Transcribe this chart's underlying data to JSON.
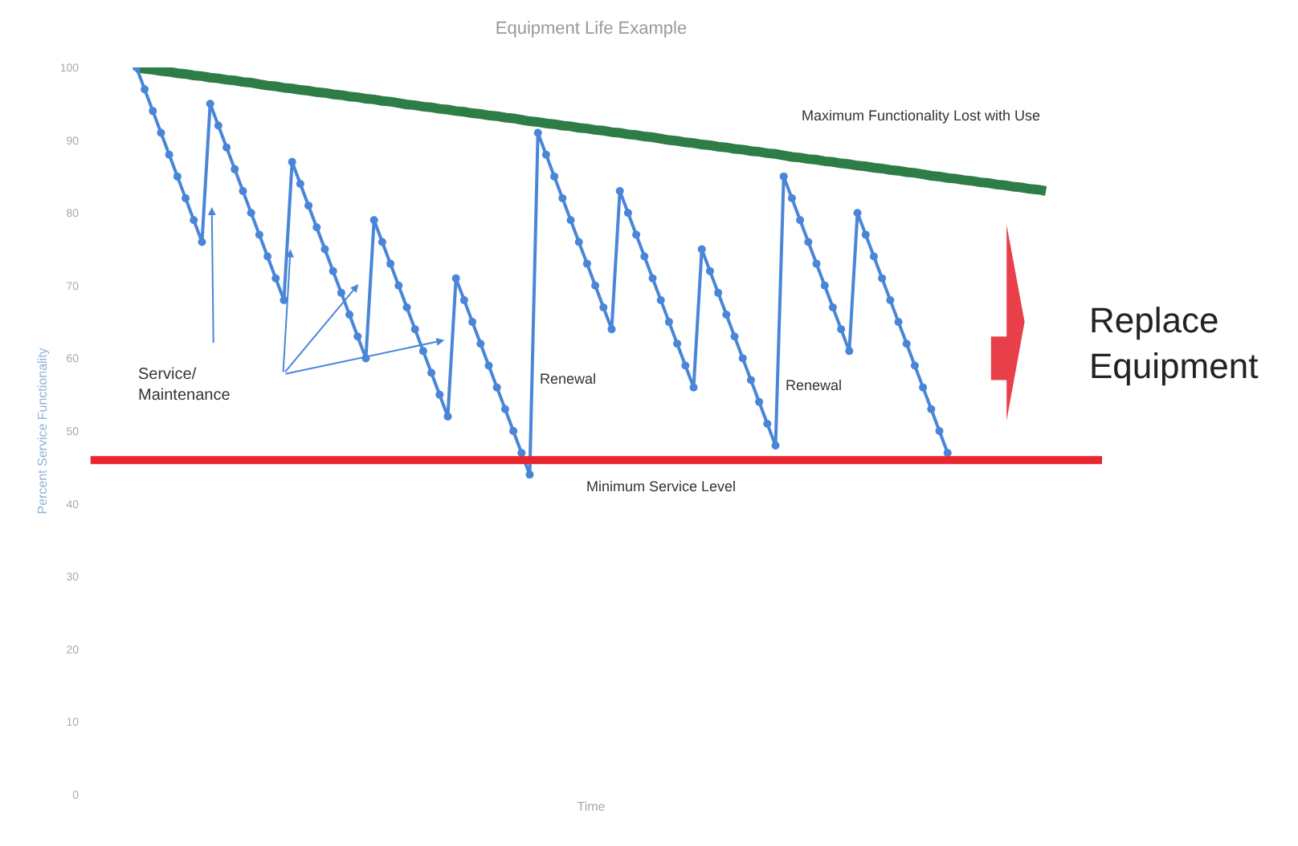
{
  "chart_data": {
    "type": "line",
    "title": "Equipment Life Example",
    "xlabel": "Time",
    "ylabel": "Percent Service Functionality",
    "categories": [
      null,
      null,
      null,
      null,
      null,
      null,
      null,
      null,
      null,
      null,
      null,
      null,
      null,
      null,
      null,
      null,
      null,
      null,
      null,
      null,
      null,
      null,
      null,
      null,
      null,
      null,
      null,
      null,
      null,
      null,
      null,
      null,
      null,
      null,
      null,
      null,
      null,
      null,
      null,
      null,
      null,
      null,
      null,
      null,
      null,
      null,
      null,
      null,
      null,
      null,
      null,
      null,
      null,
      null,
      null,
      null,
      null,
      null,
      null,
      null,
      null,
      null,
      null,
      null,
      null,
      null,
      null,
      null,
      null,
      null,
      null,
      null,
      null,
      null,
      null,
      null,
      null,
      null,
      null,
      null,
      null,
      null,
      null,
      null,
      null,
      null,
      null,
      null,
      null,
      null,
      null,
      null,
      null,
      null,
      null,
      null,
      null,
      null,
      null,
      null,
      null,
      null,
      null,
      null,
      null,
      null,
      null,
      null,
      null,
      null,
      null,
      null
    ],
    "series": [
      {
        "color": "#2e7d46",
        "marker": "none",
        "values": [
          100,
          99.8,
          99.7,
          99.5,
          99.4,
          99.2,
          99.1,
          98.9,
          98.8,
          98.6,
          98.5,
          98.3,
          98.2,
          98,
          97.9,
          97.7,
          97.5,
          97.4,
          97.2,
          97.1,
          96.9,
          96.8,
          96.6,
          96.5,
          96.3,
          96.2,
          96,
          95.9,
          95.7,
          95.6,
          95.4,
          95.3,
          95.1,
          94.9,
          94.8,
          94.6,
          94.5,
          94.3,
          94.2,
          94,
          93.9,
          93.7,
          93.6,
          93.4,
          93.3,
          93.1,
          93,
          92.8,
          92.6,
          92.5,
          92.3,
          92.2,
          92,
          91.9,
          91.7,
          91.6,
          91.4,
          91.3,
          91.1,
          91,
          90.8,
          90.7,
          90.5,
          90.4,
          90.2,
          90,
          89.9,
          89.7,
          89.6,
          89.4,
          89.3,
          89.1,
          89,
          88.8,
          88.7,
          88.5,
          88.4,
          88.2,
          88.1,
          87.9,
          87.7,
          87.6,
          87.4,
          87.3,
          87.1,
          87,
          86.8,
          86.7,
          86.5,
          86.4,
          86.2,
          86.1,
          85.9,
          85.8,
          85.6,
          85.5,
          85.3,
          85.1,
          85,
          84.8,
          84.7,
          84.5,
          84.4,
          84.2,
          84.1,
          83.9,
          83.8,
          83.6,
          83.5,
          83.3,
          83.2,
          83
        ]
      },
      {
        "color": "#4a86d8",
        "marker": "circle",
        "values": [
          100,
          97,
          94,
          91,
          88,
          85,
          82,
          79,
          76,
          95,
          92,
          89,
          86,
          83,
          80,
          77,
          74,
          71,
          68,
          87,
          84,
          81,
          78,
          75,
          72,
          69,
          66,
          63,
          60,
          79,
          76,
          73,
          70,
          67,
          64,
          61,
          58,
          55,
          52,
          71,
          68,
          65,
          62,
          59,
          56,
          53,
          50,
          47,
          44,
          91,
          88,
          85,
          82,
          79,
          76,
          73,
          70,
          67,
          64,
          83,
          80,
          77,
          74,
          71,
          68,
          65,
          62,
          59,
          56,
          75,
          72,
          69,
          66,
          63,
          60,
          57,
          54,
          51,
          48,
          85,
          82,
          79,
          76,
          73,
          70,
          67,
          64,
          61,
          80,
          77,
          74,
          71,
          68,
          65,
          62,
          59,
          56,
          53,
          50,
          47,
          null,
          null,
          null,
          null,
          null,
          null,
          null,
          null,
          null,
          null,
          null,
          null
        ]
      }
    ],
    "ylim": [
      0,
      100
    ],
    "yticks": [
      0,
      10,
      20,
      30,
      40,
      50,
      60,
      70,
      80,
      90,
      100
    ],
    "tick_labels": "y",
    "ref_lines": [
      {
        "axis": "y",
        "value": 46,
        "label": "Minimum Service Level",
        "color": "#e8262f"
      }
    ],
    "annotations": [
      "Service/\nMaintenance",
      "Renewal",
      "Renewal",
      "Maximum Functionality Lost with Use",
      "Replace\nEquipment"
    ]
  }
}
